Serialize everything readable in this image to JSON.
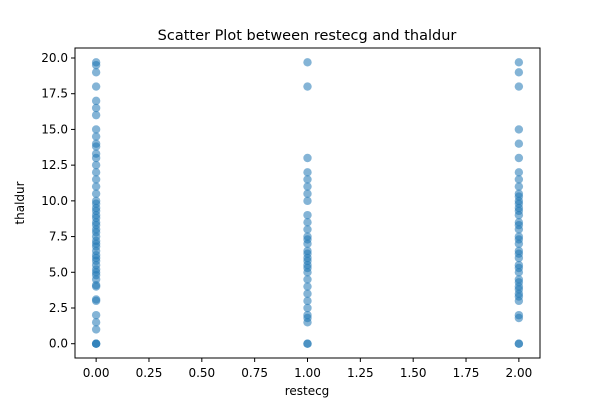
{
  "chart_data": {
    "type": "scatter",
    "title": "Scatter Plot between restecg and thaldur",
    "xlabel": "restecg",
    "ylabel": "thaldur",
    "xlim": [
      -0.1,
      2.1
    ],
    "ylim": [
      -1.0,
      20.7
    ],
    "grid": false,
    "marker_color": "#1f77b4",
    "marker_alpha": 0.55,
    "x_ticks": [
      "0.00",
      "0.25",
      "0.50",
      "0.75",
      "1.00",
      "1.25",
      "1.50",
      "1.75",
      "2.00"
    ],
    "x_tick_values": [
      0,
      0.25,
      0.5,
      0.75,
      1.0,
      1.25,
      1.5,
      1.75,
      2.0
    ],
    "y_ticks": [
      "0.0",
      "2.5",
      "5.0",
      "7.5",
      "10.0",
      "12.5",
      "15.0",
      "17.5",
      "20.0"
    ],
    "y_tick_values": [
      0,
      2.5,
      5,
      7.5,
      10,
      12.5,
      15,
      17.5,
      20
    ],
    "series": [
      {
        "x": 0,
        "y": [
          0,
          0,
          0,
          1.0,
          1.5,
          2.0,
          3.0,
          3.1,
          4.0,
          4.1,
          4.5,
          4.8,
          5.0,
          5.2,
          5.5,
          5.8,
          6.0,
          6.2,
          6.5,
          6.8,
          7.0,
          7.2,
          7.5,
          7.8,
          8.0,
          8.3,
          8.5,
          8.8,
          9.0,
          9.3,
          9.5,
          9.8,
          10.0,
          10.5,
          11.0,
          11.5,
          12.0,
          12.5,
          13.0,
          13.3,
          13.8,
          14.0,
          14.5,
          15.0,
          16.0,
          16.5,
          17.0,
          18.0,
          19.0,
          19.5,
          19.7
        ]
      },
      {
        "x": 1,
        "y": [
          0,
          0,
          1.5,
          1.8,
          2.0,
          2.5,
          3.0,
          3.5,
          4.0,
          4.5,
          5.0,
          5.3,
          5.5,
          5.8,
          6.0,
          6.3,
          6.5,
          7.0,
          7.3,
          7.5,
          8.0,
          8.5,
          9.0,
          10.0,
          10.5,
          11.0,
          11.5,
          12.0,
          13.0,
          18.0,
          19.7
        ]
      },
      {
        "x": 2,
        "y": [
          0,
          0,
          1.8,
          2.0,
          3.0,
          3.3,
          3.5,
          3.8,
          4.0,
          4.3,
          4.5,
          5.0,
          5.3,
          5.5,
          6.0,
          6.3,
          6.5,
          7.0,
          7.3,
          7.5,
          8.0,
          8.3,
          8.5,
          9.0,
          9.3,
          9.5,
          9.8,
          10.0,
          10.3,
          10.5,
          11.0,
          11.5,
          12.0,
          13.0,
          14.0,
          15.0,
          18.0,
          19.0,
          19.7
        ]
      }
    ]
  }
}
